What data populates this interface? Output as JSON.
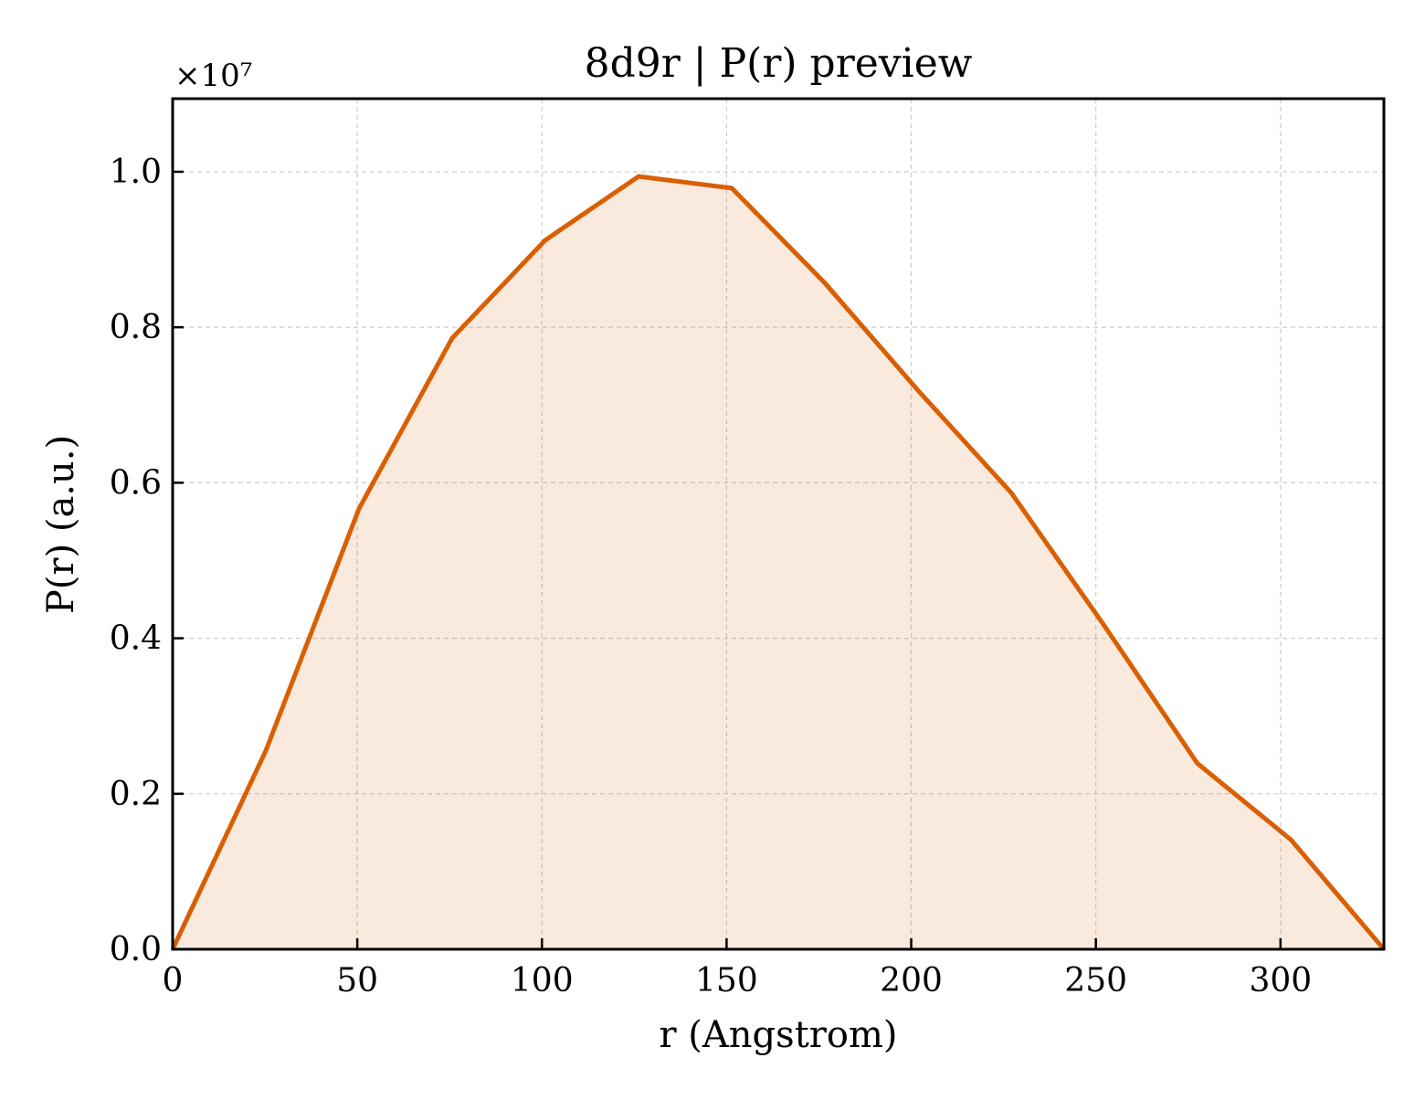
{
  "chart_data": {
    "type": "area",
    "title": "8d9r | P(r) preview",
    "xlabel": "r (Angstrom)",
    "ylabel": "P(r) (a.u.)",
    "y_offset_label": "×10⁷",
    "xlim": [
      0,
      328
    ],
    "ylim": [
      0,
      1.094
    ],
    "y_scale_factor": 10000000,
    "grid": true,
    "grid_style": "dashed",
    "tick_direction": "in",
    "x_ticks": [
      0,
      50,
      100,
      150,
      200,
      250,
      300
    ],
    "x_tick_labels": [
      "0",
      "50",
      "100",
      "150",
      "200",
      "250",
      "300"
    ],
    "y_ticks": [
      0.0,
      0.2,
      0.4,
      0.6,
      0.8,
      1.0
    ],
    "y_tick_labels": [
      "0.0",
      "0.2",
      "0.4",
      "0.6",
      "0.8",
      "1.0"
    ],
    "series": [
      {
        "color": "#d95f02",
        "fill_color": "#d95f02",
        "fill_opacity": 0.13,
        "x": [
          0,
          25.2,
          50.5,
          75.7,
          100.9,
          126.2,
          151.4,
          176.6,
          201.8,
          227.1,
          252.3,
          277.5,
          302.8,
          328
        ],
        "y": [
          0.0,
          0.255,
          0.567,
          0.786,
          0.912,
          0.994,
          0.979,
          0.857,
          0.719,
          0.587,
          0.416,
          0.239,
          0.141,
          0.0
        ]
      }
    ]
  }
}
